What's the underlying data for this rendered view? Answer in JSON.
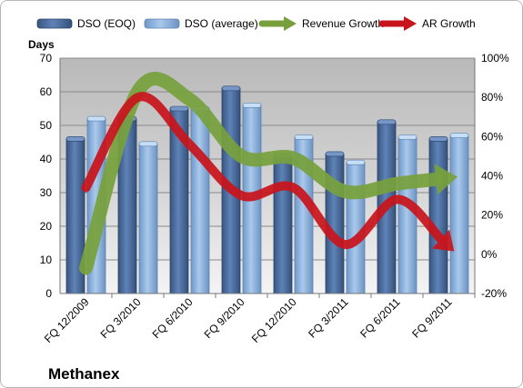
{
  "chart_data": {
    "type": "bar",
    "company": "Methanex",
    "y_left_label": "Days",
    "categories": [
      "FQ 12/2009",
      "FQ 3/2010",
      "FQ 6/2010",
      "FQ 9/2010",
      "FQ 12/2010",
      "FQ 3/2011",
      "FQ 6/2011",
      "FQ 9/2011"
    ],
    "y_left": {
      "min": 0,
      "max": 70,
      "step": 10,
      "ticks": [
        "0",
        "10",
        "20",
        "30",
        "40",
        "50",
        "60",
        "70"
      ]
    },
    "y_right": {
      "min": -20,
      "max": 100,
      "step": 20,
      "ticks": [
        "-20%",
        "0%",
        "20%",
        "40%",
        "60%",
        "80%",
        "100%"
      ]
    },
    "series": [
      {
        "name": "DSO (EOQ)",
        "kind": "bar",
        "axis": "left",
        "color": "#4f6fa3",
        "values": [
          46,
          52,
          55,
          61,
          41,
          41.5,
          51,
          46
        ]
      },
      {
        "name": "DSO (average)",
        "kind": "bar",
        "axis": "left",
        "color": "#8fb4df",
        "values": [
          52,
          44.5,
          55,
          56,
          46.5,
          39,
          46.5,
          47
        ]
      },
      {
        "name": "Revenue Growth",
        "kind": "arrow",
        "axis": "right",
        "color": "#77a03d",
        "values": [
          -7,
          83,
          79,
          50,
          49,
          32,
          36,
          39
        ]
      },
      {
        "name": "AR Growth",
        "kind": "arrow",
        "axis": "right",
        "color": "#c8141c",
        "values": [
          34,
          80,
          56,
          30,
          34,
          5,
          28,
          4
        ]
      }
    ],
    "grid": true,
    "legend_position": "top"
  }
}
